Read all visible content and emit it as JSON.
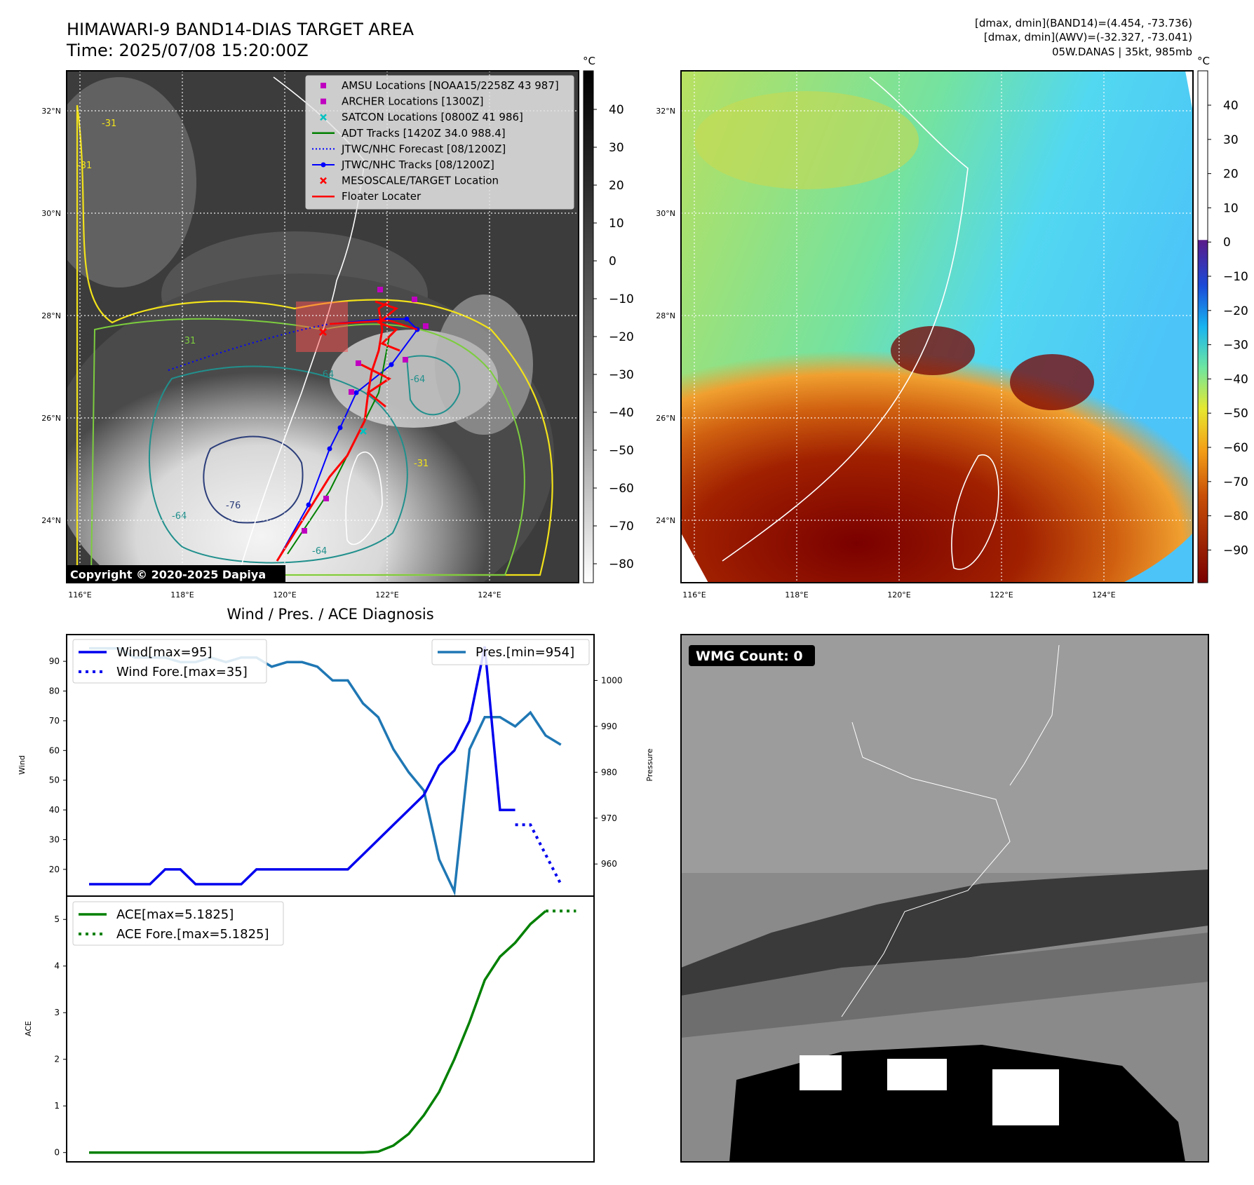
{
  "header": {
    "title": "HIMAWARI-9 BAND14-DIAS TARGET AREA",
    "time": "Time: 2025/07/08 15:20:00Z",
    "info_lines": [
      "[dmax, dmin](BAND14)=(4.454, -73.736)",
      "[dmax, dmin](AWV)=(-32.327, -73.041)",
      "05W.DANAS | 35kt, 985mb"
    ]
  },
  "maps": {
    "lat_labels": [
      "32°N",
      "30°N",
      "28°N",
      "26°N",
      "24°N"
    ],
    "lon_labels": [
      "116°E",
      "118°E",
      "120°E",
      "122°E",
      "124°E"
    ],
    "copyright": "Copyright © 2020-2025 Dapiya",
    "contour_labels": [
      "-31",
      "-31",
      "-31",
      "-64",
      "-64",
      "-64",
      "-76",
      "-31",
      "-64"
    ],
    "colorbar_unit": "°C",
    "ir_colorbar_ticks": [
      "40",
      "30",
      "20",
      "10",
      "0",
      "−10",
      "−20",
      "−30",
      "−40",
      "−50",
      "−60",
      "−70",
      "−80"
    ],
    "wv_colorbar_ticks": [
      "40",
      "30",
      "20",
      "10",
      "0",
      "−10",
      "−20",
      "−30",
      "−40",
      "−50",
      "−60",
      "−70",
      "−80",
      "−90"
    ],
    "legend": [
      {
        "label": "AMSU Locations [NOAA15/2258Z 43 987]",
        "marker": "square",
        "color": "#c000c0"
      },
      {
        "label": "ARCHER Locations [1300Z]",
        "marker": "square",
        "color": "#c000c0"
      },
      {
        "label": "SATCON Locations [0800Z 41 986]",
        "marker": "x",
        "color": "#00c0c0"
      },
      {
        "label": "ADT Tracks [1420Z 34.0 988.4]",
        "marker": "line",
        "color": "#008000"
      },
      {
        "label": "JTWC/NHC Forecast [08/1200Z]",
        "marker": "dotted",
        "color": "#0000ff"
      },
      {
        "label": "JTWC/NHC Tracks [08/1200Z]",
        "marker": "line-dot",
        "color": "#0000ff"
      },
      {
        "label": "MESOSCALE/TARGET Location",
        "marker": "x",
        "color": "#ff0000"
      },
      {
        "label": "Floater Locater",
        "marker": "line",
        "color": "#ff0000"
      }
    ]
  },
  "diagnosis": {
    "title": "Wind / Pres. / ACE Diagnosis",
    "wind_axis_label": "Wind",
    "pressure_axis_label": "Pressure",
    "ace_axis_label": "ACE",
    "wind_ticks": [
      "90",
      "80",
      "70",
      "60",
      "50",
      "40",
      "30",
      "20"
    ],
    "pressure_ticks": [
      "1000",
      "990",
      "980",
      "970",
      "960"
    ],
    "ace_ticks": [
      "5",
      "4",
      "3",
      "2",
      "1",
      "0"
    ],
    "legend_wind": "Wind[max=95]",
    "legend_wind_fore": "Wind Fore.[max=35]",
    "legend_pres": "Pres.[min=954]",
    "legend_ace": "ACE[max=5.1825]",
    "legend_ace_fore": "ACE Fore.[max=5.1825]"
  },
  "wmg": {
    "label": "WMG Count: 0"
  },
  "colors": {
    "wind": "#0000ee",
    "pressure": "#1f77b4",
    "ace": "#008000",
    "track": "#0000ff",
    "floater": "#ff0000",
    "contour_yellow": "#f2e21a",
    "contour_green": "#7ccd3e",
    "contour_teal": "#21908d",
    "contour_navy": "#2c3e7a"
  },
  "chart_data": [
    {
      "type": "line",
      "title": "Wind / Pres. / ACE Diagnosis",
      "x": [
        0,
        1,
        2,
        3,
        4,
        5,
        6,
        7,
        8,
        9,
        10,
        11,
        12,
        13,
        14,
        15,
        16,
        17,
        18,
        19,
        20,
        21,
        22,
        23,
        24,
        25,
        26,
        27,
        28,
        29,
        30,
        31
      ],
      "ylabel": "Wind",
      "ylim": [
        11,
        99
      ],
      "series": [
        {
          "name": "Wind[max=95]",
          "x": [
            0,
            1,
            2,
            3,
            4,
            5,
            6,
            7,
            8,
            9,
            10,
            11,
            12,
            13,
            14,
            15,
            16,
            17,
            18,
            19,
            20,
            21,
            22,
            23,
            24,
            25,
            26,
            27,
            28
          ],
          "values": [
            15,
            15,
            15,
            15,
            15,
            20,
            20,
            15,
            15,
            15,
            15,
            20,
            20,
            20,
            20,
            20,
            20,
            20,
            25,
            30,
            35,
            40,
            45,
            55,
            60,
            70,
            95,
            40,
            40
          ]
        },
        {
          "name": "Wind Fore.[max=35]",
          "x": [
            28,
            29,
            30,
            31
          ],
          "values": [
            35,
            35,
            25,
            15
          ]
        }
      ]
    },
    {
      "type": "line",
      "ylabel": "Pressure",
      "ylim": [
        953,
        1010
      ],
      "series": [
        {
          "name": "Pres.[min=954]",
          "x": [
            0,
            1,
            2,
            3,
            4,
            5,
            6,
            7,
            8,
            9,
            10,
            11,
            12,
            13,
            14,
            15,
            16,
            17,
            18,
            19,
            20,
            21,
            22,
            23,
            24,
            25,
            26,
            27,
            28,
            29,
            30,
            31
          ],
          "values": [
            1007,
            1007,
            1007,
            1005,
            1005,
            1005,
            1004,
            1004,
            1005,
            1004,
            1005,
            1005,
            1003,
            1004,
            1004,
            1003,
            1000,
            1000,
            995,
            992,
            985,
            980,
            976,
            961,
            954,
            985,
            992,
            992,
            990,
            993,
            988,
            986
          ]
        }
      ]
    },
    {
      "type": "line",
      "ylabel": "ACE",
      "ylim": [
        -0.2,
        5.5
      ],
      "series": [
        {
          "name": "ACE[max=5.1825]",
          "x": [
            0,
            4,
            8,
            12,
            16,
            18,
            19,
            20,
            21,
            22,
            23,
            24,
            25,
            26,
            27,
            28,
            29,
            30
          ],
          "values": [
            0,
            0,
            0,
            0,
            0,
            0,
            0.02,
            0.15,
            0.4,
            0.8,
            1.3,
            2.0,
            2.8,
            3.7,
            4.2,
            4.5,
            4.9,
            5.18
          ]
        },
        {
          "name": "ACE Fore.[max=5.1825]",
          "x": [
            30,
            32
          ],
          "values": [
            5.18,
            5.18
          ]
        }
      ]
    }
  ]
}
